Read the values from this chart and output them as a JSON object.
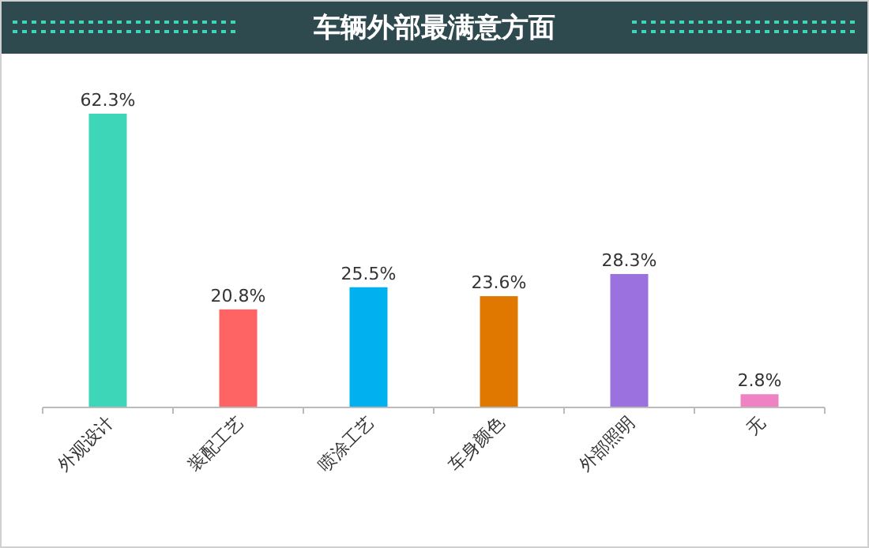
{
  "chart_data": {
    "type": "bar",
    "title": "车辆外部最满意方面",
    "categories": [
      "外观设计",
      "装配工艺",
      "喷涂工艺",
      "车身颜色",
      "外部照明",
      "无"
    ],
    "values": [
      62.3,
      20.8,
      25.5,
      23.6,
      28.3,
      2.8
    ],
    "colors": [
      "#3dd6b9",
      "#ff6464",
      "#00b0ef",
      "#e07800",
      "#9b71e0",
      "#ee82c2"
    ],
    "value_labels": [
      "62.3%",
      "20.8%",
      "25.5%",
      "23.6%",
      "28.3%",
      "2.8%"
    ]
  }
}
